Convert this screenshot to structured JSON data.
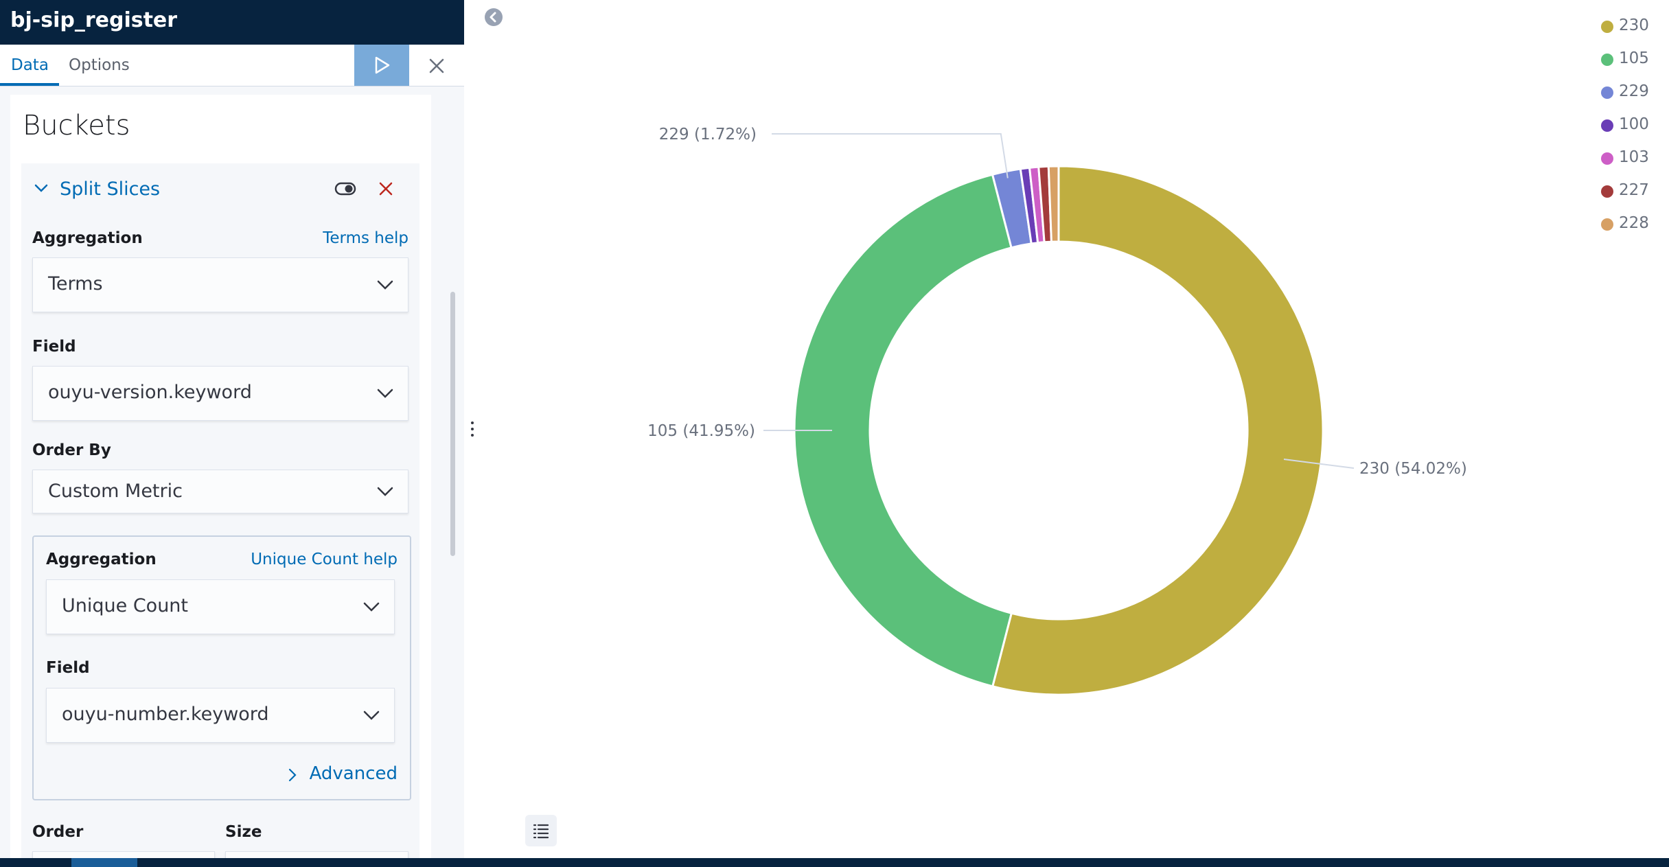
{
  "editor": {
    "title": "bj-sip_register",
    "tabs": [
      "Data",
      "Options"
    ],
    "section_title": "Buckets",
    "split": {
      "title": "Split Slices",
      "aggregation_label": "Aggregation",
      "aggregation_help": "Terms help",
      "aggregation_value": "Terms",
      "field_label": "Field",
      "field_value": "ouyu-version.keyword",
      "order_by_label": "Order By",
      "order_by_value": "Custom Metric",
      "metric": {
        "aggregation_label": "Aggregation",
        "aggregation_help": "Unique Count help",
        "aggregation_value": "Unique Count",
        "field_label": "Field",
        "field_value": "ouyu-number.keyword",
        "advanced_label": "Advanced"
      },
      "order_label": "Order",
      "size_label": "Size"
    }
  },
  "colors": {
    "header_bg": "#07233f",
    "link": "#006bb4",
    "run_button": "#79aad9"
  },
  "chart_data": {
    "type": "pie",
    "donut": true,
    "series": [
      {
        "name": "230",
        "value": 54.02,
        "label": "230 (54.02%)",
        "color": "#bfae40"
      },
      {
        "name": "105",
        "value": 41.95,
        "label": "105 (41.95%)",
        "color": "#5bc07a"
      },
      {
        "name": "229",
        "value": 1.72,
        "label": "229 (1.72%)",
        "color": "#7486d6"
      },
      {
        "name": "100",
        "value": 0.55,
        "color": "#6a3db6"
      },
      {
        "name": "103",
        "value": 0.55,
        "color": "#cd5ec6"
      },
      {
        "name": "227",
        "value": 0.6,
        "color": "#a33b3b"
      },
      {
        "name": "228",
        "value": 0.61,
        "color": "#d7a064"
      }
    ],
    "legend_position": "top-right"
  }
}
